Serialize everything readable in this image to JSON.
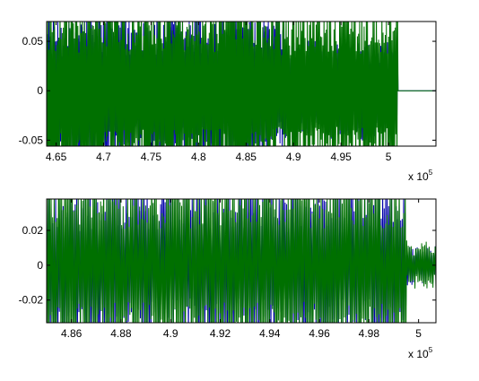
{
  "chart_data": [
    {
      "type": "line",
      "xlim": [
        464000,
        505000
      ],
      "ylim": [
        -0.056,
        0.07
      ],
      "x_ticks": [
        465000,
        470000,
        475000,
        480000,
        485000,
        490000,
        495000,
        500000
      ],
      "x_tick_labels": [
        "4.65",
        "4.7",
        "4.75",
        "4.8",
        "4.85",
        "4.9",
        "4.95",
        "5"
      ],
      "y_ticks": [
        -0.05,
        0,
        0.05
      ],
      "y_tick_labels": [
        "-0.05",
        "0",
        "0.05"
      ],
      "x_multiplier": {
        "base": "x 10",
        "exponent": "5"
      },
      "grid": false,
      "legend": "none",
      "series": [
        {
          "color": "#0000aa",
          "ranges": [
            [
              464000,
              489000,
              0.055
            ],
            [
              489000,
              501000,
              0.035
            ]
          ]
        },
        {
          "color": "#007000",
          "ranges": [
            [
              464000,
              488000,
              0.07
            ],
            [
              488000,
              501000,
              0.065
            ]
          ]
        }
      ]
    },
    {
      "type": "line",
      "xlim": [
        485000,
        500700
      ],
      "ylim": [
        -0.033,
        0.038
      ],
      "x_ticks": [
        486000,
        488000,
        490000,
        492000,
        494000,
        496000,
        498000,
        500000
      ],
      "x_tick_labels": [
        "4.86",
        "4.88",
        "4.9",
        "4.92",
        "4.94",
        "4.96",
        "4.98",
        "5"
      ],
      "y_ticks": [
        -0.02,
        0,
        0.02
      ],
      "y_tick_labels": [
        "-0.02",
        "0",
        "0.02"
      ],
      "x_multiplier": {
        "base": "x 10",
        "exponent": "5"
      },
      "grid": false,
      "legend": "none",
      "series": [
        {
          "color": "#0000aa",
          "ranges": [
            [
              485000,
              499500,
              0.034
            ],
            [
              499500,
              500700,
              0.008
            ]
          ]
        },
        {
          "color": "#007000",
          "ranges": [
            [
              485000,
              499500,
              0.038
            ],
            [
              499500,
              500700,
              0.01
            ]
          ]
        }
      ]
    }
  ]
}
